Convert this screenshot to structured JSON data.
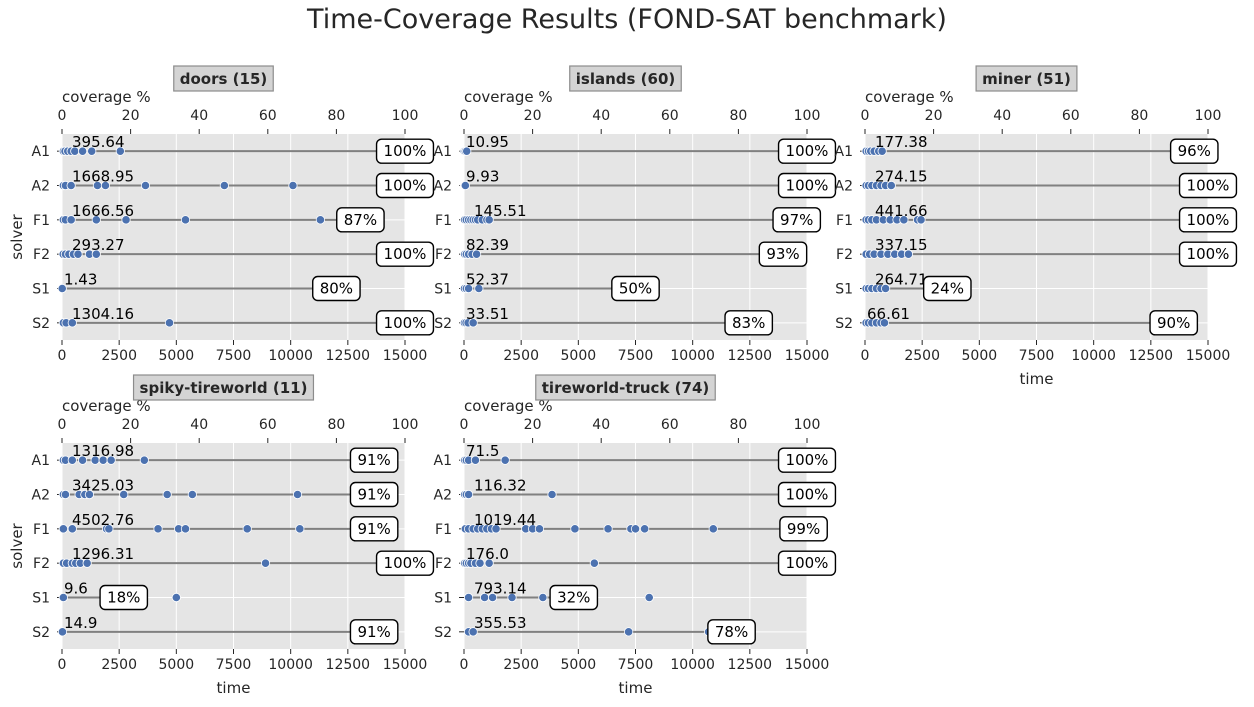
{
  "suptitle": "Time-Coverage Results (FOND-SAT benchmark)",
  "chart_data": [
    {
      "type": "scatter",
      "title": "doors (15)",
      "xlabel": "",
      "ylabel": "solver",
      "top_xlabel": "coverage %",
      "xlim": [
        0,
        15000
      ],
      "x_ticks": [
        0,
        2500,
        5000,
        7500,
        10000,
        12500,
        15000
      ],
      "top_ticks": [
        0,
        20,
        40,
        60,
        80,
        100
      ],
      "solvers": [
        {
          "name": "A1",
          "times": [
            60,
            130,
            250,
            400,
            560,
            900,
            1300,
            2550
          ],
          "label": "395.64",
          "coverage": 100
        },
        {
          "name": "A2",
          "times": [
            60,
            150,
            400,
            1550,
            1900,
            3650,
            7100,
            10100
          ],
          "label": "1668.95",
          "coverage": 100
        },
        {
          "name": "F1",
          "times": [
            60,
            150,
            400,
            1500,
            2800,
            5400,
            11300
          ],
          "label": "1666.56",
          "coverage": 87
        },
        {
          "name": "F2",
          "times": [
            50,
            150,
            300,
            500,
            700,
            1200,
            1500
          ],
          "label": "293.27",
          "coverage": 100
        },
        {
          "name": "S1",
          "times": [
            10
          ],
          "label": "1.43",
          "coverage": 80
        },
        {
          "name": "S2",
          "times": [
            60,
            180,
            450,
            4700,
            14500
          ],
          "label": "1304.16",
          "coverage": 100
        }
      ]
    },
    {
      "type": "scatter",
      "title": "islands (60)",
      "xlabel": "",
      "ylabel": "",
      "top_xlabel": "coverage %",
      "xlim": [
        0,
        15000
      ],
      "x_ticks": [
        0,
        2500,
        5000,
        7500,
        10000,
        12500,
        15000
      ],
      "top_ticks": [
        0,
        20,
        40,
        60,
        80,
        100
      ],
      "solvers": [
        {
          "name": "A1",
          "times": [
            10,
            60,
            120
          ],
          "label": "10.95",
          "coverage": 100
        },
        {
          "name": "A2",
          "times": [
            10,
            30,
            60
          ],
          "label": "9.93",
          "coverage": 100
        },
        {
          "name": "F1",
          "times": [
            30,
            100,
            200,
            300,
            400,
            500,
            600,
            800,
            1000,
            1100
          ],
          "label": "145.51",
          "coverage": 97
        },
        {
          "name": "F2",
          "times": [
            30,
            100,
            200,
            350,
            550
          ],
          "label": "82.39",
          "coverage": 93
        },
        {
          "name": "S1",
          "times": [
            20,
            100,
            200,
            650
          ],
          "label": "52.37",
          "coverage": 50
        },
        {
          "name": "S2",
          "times": [
            20,
            90,
            180,
            400
          ],
          "label": "33.51",
          "coverage": 83
        }
      ]
    },
    {
      "type": "scatter",
      "title": "miner (51)",
      "xlabel": "time",
      "ylabel": "",
      "top_xlabel": "coverage %",
      "xlim": [
        0,
        15000
      ],
      "x_ticks": [
        0,
        2500,
        5000,
        7500,
        10000,
        12500,
        15000
      ],
      "top_ticks": [
        0,
        20,
        40,
        60,
        80,
        100
      ],
      "solvers": [
        {
          "name": "A1",
          "times": [
            50,
            150,
            250,
            400,
            600,
            750
          ],
          "label": "177.38",
          "coverage": 96
        },
        {
          "name": "A2",
          "times": [
            50,
            150,
            300,
            500,
            700,
            900,
            1150
          ],
          "label": "274.15",
          "coverage": 100
        },
        {
          "name": "F1",
          "times": [
            50,
            150,
            300,
            500,
            800,
            1100,
            1400,
            1700,
            2300,
            2450
          ],
          "label": "441.66",
          "coverage": 100
        },
        {
          "name": "F2",
          "times": [
            50,
            200,
            400,
            700,
            1000,
            1300,
            1600,
            1900
          ],
          "label": "337.15",
          "coverage": 100
        },
        {
          "name": "S1",
          "times": [
            50,
            150,
            300,
            500,
            700,
            900
          ],
          "label": "264.71",
          "coverage": 24
        },
        {
          "name": "S2",
          "times": [
            50,
            150,
            300,
            500,
            700,
            850
          ],
          "label": "66.61",
          "coverage": 90
        }
      ]
    },
    {
      "type": "scatter",
      "title": "spiky-tireworld (11)",
      "xlabel": "time",
      "ylabel": "solver",
      "top_xlabel": "coverage %",
      "xlim": [
        0,
        15000
      ],
      "x_ticks": [
        0,
        2500,
        5000,
        7500,
        10000,
        12500,
        15000
      ],
      "top_ticks": [
        0,
        20,
        40,
        60,
        80,
        100
      ],
      "solvers": [
        {
          "name": "A1",
          "times": [
            60,
            150,
            450,
            900,
            1450,
            1800,
            2150,
            3600
          ],
          "label": "1316.98",
          "coverage": 91
        },
        {
          "name": "A2",
          "times": [
            60,
            150,
            750,
            1000,
            1200,
            2700,
            4600,
            5700,
            10300
          ],
          "label": "3425.03",
          "coverage": 91
        },
        {
          "name": "F1",
          "times": [
            60,
            450,
            1950,
            2050,
            4200,
            5100,
            5400,
            8100,
            10400
          ],
          "label": "4502.76",
          "coverage": 91
        },
        {
          "name": "F2",
          "times": [
            60,
            200,
            450,
            600,
            800,
            1100,
            8900
          ],
          "label": "1296.31",
          "coverage": 100
        },
        {
          "name": "S1",
          "times": [
            60,
            5000
          ],
          "label": "9.6",
          "coverage": 18
        },
        {
          "name": "S2",
          "times": [
            20
          ],
          "label": "14.9",
          "coverage": 91
        }
      ]
    },
    {
      "type": "scatter",
      "title": "tireworld-truck (74)",
      "xlabel": "time",
      "ylabel": "",
      "top_xlabel": "coverage %",
      "xlim": [
        0,
        15000
      ],
      "x_ticks": [
        0,
        2500,
        5000,
        7500,
        10000,
        12500,
        15000
      ],
      "top_ticks": [
        0,
        20,
        40,
        60,
        80,
        100
      ],
      "solvers": [
        {
          "name": "A1",
          "times": [
            30,
            100,
            200,
            500,
            1800
          ],
          "label": "71.5",
          "coverage": 100
        },
        {
          "name": "A2",
          "times": [
            30,
            100,
            200,
            3850
          ],
          "label": "116.32",
          "coverage": 100
        },
        {
          "name": "F1",
          "times": [
            60,
            200,
            400,
            600,
            800,
            1000,
            1200,
            1400,
            2700,
            3000,
            3300,
            4850,
            6300,
            7300,
            7500,
            7900,
            10900
          ],
          "label": "1019.44",
          "coverage": 99
        },
        {
          "name": "F2",
          "times": [
            30,
            100,
            200,
            300,
            500,
            700,
            1100,
            5700
          ],
          "label": "176.0",
          "coverage": 100
        },
        {
          "name": "S1",
          "times": [
            200,
            900,
            1250,
            2100,
            3450,
            8100
          ],
          "label": "793.14",
          "coverage": 32
        },
        {
          "name": "S2",
          "times": [
            200,
            400,
            7200,
            10700
          ],
          "label": "355.53",
          "coverage": 78
        }
      ]
    }
  ]
}
